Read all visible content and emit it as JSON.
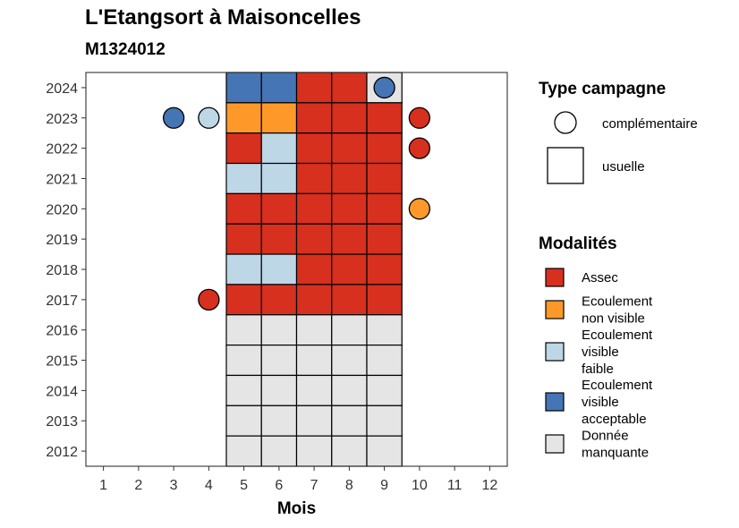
{
  "header": {
    "title": "L'Etangsort à Maisoncelles",
    "subtitle": "M1324012"
  },
  "chart_data": {
    "type": "heatmap",
    "title": "L'Etangsort à Maisoncelles",
    "subtitle": "M1324012",
    "xlabel": "Mois",
    "ylabel": "",
    "x_ticks": [
      "1",
      "2",
      "3",
      "4",
      "5",
      "6",
      "7",
      "8",
      "9",
      "10",
      "11",
      "12"
    ],
    "y_ticks": [
      "2012",
      "2013",
      "2014",
      "2015",
      "2016",
      "2017",
      "2018",
      "2019",
      "2020",
      "2021",
      "2022",
      "2023",
      "2024"
    ],
    "xlim": [
      0.5,
      12.5
    ],
    "ylim": [
      2011.5,
      2024.5
    ],
    "grid": false,
    "legend_placement": "right",
    "categories": {
      "assec": {
        "label": "Assec",
        "color": "#d7301f"
      },
      "ecoul_non_visible": {
        "label": "Ecoulement\nnon visible",
        "color": "#fe9929"
      },
      "ecoul_visible_faible": {
        "label": "Ecoulement\nvisible\nfaible",
        "color": "#bdd7e7"
      },
      "ecoul_visible_acceptable": {
        "label": "Ecoulement\nvisible\nacceptable",
        "color": "#4575b4"
      },
      "donnee_manquante": {
        "label": "Donnée\nmanquante",
        "color": "#e5e5e5"
      }
    },
    "usuelle": [
      {
        "year": 2024,
        "months": [
          "ecoul_visible_acceptable",
          "ecoul_visible_acceptable",
          "assec",
          "assec",
          "donnee_manquante"
        ]
      },
      {
        "year": 2023,
        "months": [
          "ecoul_non_visible",
          "ecoul_non_visible",
          "assec",
          "assec",
          "assec"
        ]
      },
      {
        "year": 2022,
        "months": [
          "assec",
          "ecoul_visible_faible",
          "assec",
          "assec",
          "assec"
        ]
      },
      {
        "year": 2021,
        "months": [
          "ecoul_visible_faible",
          "ecoul_visible_faible",
          "assec",
          "assec",
          "assec"
        ]
      },
      {
        "year": 2020,
        "months": [
          "assec",
          "assec",
          "assec",
          "assec",
          "assec"
        ]
      },
      {
        "year": 2019,
        "months": [
          "assec",
          "assec",
          "assec",
          "assec",
          "assec"
        ]
      },
      {
        "year": 2018,
        "months": [
          "ecoul_visible_faible",
          "ecoul_visible_faible",
          "assec",
          "assec",
          "assec"
        ]
      },
      {
        "year": 2017,
        "months": [
          "assec",
          "assec",
          "assec",
          "assec",
          "assec"
        ]
      },
      {
        "year": 2016,
        "months": [
          "donnee_manquante",
          "donnee_manquante",
          "donnee_manquante",
          "donnee_manquante",
          "donnee_manquante"
        ]
      },
      {
        "year": 2015,
        "months": [
          "donnee_manquante",
          "donnee_manquante",
          "donnee_manquante",
          "donnee_manquante",
          "donnee_manquante"
        ]
      },
      {
        "year": 2014,
        "months": [
          "donnee_manquante",
          "donnee_manquante",
          "donnee_manquante",
          "donnee_manquante",
          "donnee_manquante"
        ]
      },
      {
        "year": 2013,
        "months": [
          "donnee_manquante",
          "donnee_manquante",
          "donnee_manquante",
          "donnee_manquante",
          "donnee_manquante"
        ]
      },
      {
        "year": 2012,
        "months": [
          "donnee_manquante",
          "donnee_manquante",
          "donnee_manquante",
          "donnee_manquante",
          "donnee_manquante"
        ]
      }
    ],
    "usuelle_start_month": 5,
    "complementaire": [
      {
        "year": 2024,
        "month": 9,
        "category": "ecoul_visible_acceptable"
      },
      {
        "year": 2023,
        "month": 3,
        "category": "ecoul_visible_acceptable"
      },
      {
        "year": 2023,
        "month": 4,
        "category": "ecoul_visible_faible"
      },
      {
        "year": 2023,
        "month": 10,
        "category": "assec"
      },
      {
        "year": 2022,
        "month": 10,
        "category": "assec"
      },
      {
        "year": 2020,
        "month": 10,
        "category": "ecoul_non_visible"
      },
      {
        "year": 2017,
        "month": 4,
        "category": "assec"
      }
    ],
    "legend_type": {
      "title": "Type campagne",
      "items": [
        {
          "shape": "circle",
          "label": "complémentaire"
        },
        {
          "shape": "square",
          "label": "usuelle"
        }
      ]
    },
    "legend_modalites": {
      "title": "Modalités",
      "order": [
        "assec",
        "ecoul_non_visible",
        "ecoul_visible_faible",
        "ecoul_visible_acceptable",
        "donnee_manquante"
      ]
    }
  }
}
